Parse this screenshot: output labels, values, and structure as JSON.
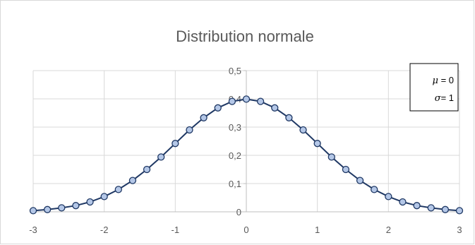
{
  "chart_data": {
    "type": "line",
    "title": "Distribution normale",
    "xlabel": "",
    "ylabel": "",
    "xlim": [
      -3,
      3
    ],
    "ylim": [
      0,
      0.5
    ],
    "grid": true,
    "x_ticks": [
      -3,
      -2,
      -1,
      0,
      1,
      2,
      3
    ],
    "x_tick_labels": [
      "-3",
      "-2",
      "-1",
      "0",
      "1",
      "2",
      "3"
    ],
    "y_ticks": [
      0,
      0.1,
      0.2,
      0.3,
      0.4,
      0.5
    ],
    "y_tick_labels": [
      "0",
      "0,1",
      "0,2",
      "0,3",
      "0,4",
      "0,5"
    ],
    "series": [
      {
        "x": [
          -3,
          -2.8,
          -2.6,
          -2.4,
          -2.2,
          -2,
          -1.8,
          -1.6,
          -1.4,
          -1.2,
          -1,
          -0.8,
          -0.6,
          -0.4,
          -0.2,
          0,
          0.2,
          0.4,
          0.6,
          0.8,
          1,
          1.2,
          1.4,
          1.6,
          1.8,
          2,
          2.2,
          2.4,
          2.6,
          2.8,
          3
        ],
        "y": [
          0.004,
          0.008,
          0.014,
          0.022,
          0.035,
          0.054,
          0.079,
          0.111,
          0.15,
          0.194,
          0.242,
          0.29,
          0.333,
          0.368,
          0.391,
          0.399,
          0.391,
          0.368,
          0.333,
          0.29,
          0.242,
          0.194,
          0.15,
          0.111,
          0.079,
          0.054,
          0.035,
          0.022,
          0.014,
          0.008,
          0.004
        ],
        "line_color": "#1f3864",
        "marker_fill": "#b4c7e7",
        "marker_edge": "#1f3864",
        "marker": "circle"
      }
    ],
    "legend_box": {
      "placement": "top-right",
      "mu_symbol": "μ",
      "mu_text": " = 0",
      "sigma_symbol": "σ",
      "sigma_text": "= 1"
    }
  }
}
